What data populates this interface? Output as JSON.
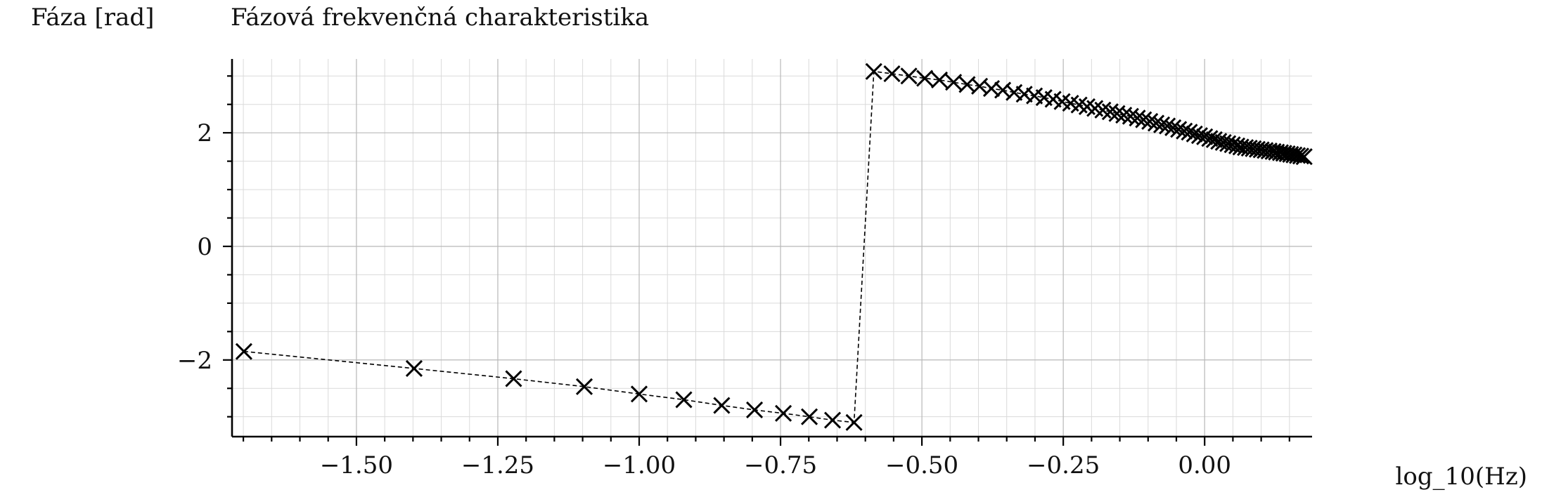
{
  "chart_data": {
    "type": "line",
    "title": "Fázová frekvenčná charakteristika",
    "ylabel": "Fáza [rad]",
    "xlabel": "log_10(Hz)",
    "xlim": [
      -1.72,
      0.19
    ],
    "ylim": [
      -3.35,
      3.3
    ],
    "x_ticks": [
      -1.5,
      -1.25,
      -1.0,
      -0.75,
      -0.5,
      -0.25,
      0.0
    ],
    "x_tick_labels": [
      "−1.50",
      "−1.25",
      "−1.00",
      "−0.75",
      "−0.50",
      "−0.25",
      "0.00"
    ],
    "y_ticks": [
      -2,
      0,
      2
    ],
    "y_tick_labels": [
      "−2",
      "0",
      "2"
    ],
    "grid": true,
    "line_style": "dashed",
    "marker": "x",
    "color": "#000000",
    "series": [
      {
        "x": [
          -1.699,
          -1.398,
          -1.222,
          -1.097,
          -1.0,
          -0.921,
          -0.854,
          -0.796,
          -0.745,
          -0.699,
          -0.658,
          -0.62,
          -0.585,
          -0.553,
          -0.523,
          -0.495,
          -0.469,
          -0.444,
          -0.42,
          -0.398,
          -0.377,
          -0.357,
          -0.337,
          -0.319,
          -0.301,
          -0.284,
          -0.268,
          -0.252,
          -0.237,
          -0.222,
          -0.208,
          -0.194,
          -0.18,
          -0.167,
          -0.155,
          -0.143,
          -0.131,
          -0.119,
          -0.108,
          -0.097,
          -0.086,
          -0.076,
          -0.066,
          -0.056,
          -0.046,
          -0.036,
          -0.027,
          -0.018,
          -0.009,
          0.0,
          0.009,
          0.017,
          0.025,
          0.033,
          0.041,
          0.049,
          0.057,
          0.064,
          0.072,
          0.079,
          0.086,
          0.093,
          0.1,
          0.107,
          0.114,
          0.121,
          0.127,
          0.134,
          0.14,
          0.146,
          0.152,
          0.158,
          0.164,
          0.17,
          0.176
        ],
        "y": [
          -1.85,
          -2.15,
          -2.33,
          -2.47,
          -2.6,
          -2.7,
          -2.8,
          -2.88,
          -2.94,
          -3.0,
          -3.06,
          -3.1,
          3.08,
          3.04,
          3.0,
          2.96,
          2.93,
          2.89,
          2.85,
          2.82,
          2.78,
          2.75,
          2.71,
          2.68,
          2.65,
          2.62,
          2.59,
          2.55,
          2.52,
          2.49,
          2.46,
          2.43,
          2.4,
          2.37,
          2.34,
          2.31,
          2.29,
          2.26,
          2.23,
          2.2,
          2.17,
          2.14,
          2.12,
          2.09,
          2.06,
          2.03,
          2.01,
          1.98,
          1.95,
          1.93,
          1.9,
          1.88,
          1.85,
          1.83,
          1.81,
          1.79,
          1.77,
          1.75,
          1.74,
          1.73,
          1.72,
          1.71,
          1.7,
          1.69,
          1.68,
          1.67,
          1.66,
          1.65,
          1.64,
          1.63,
          1.62,
          1.61,
          1.6,
          1.59,
          1.58
        ]
      }
    ]
  }
}
